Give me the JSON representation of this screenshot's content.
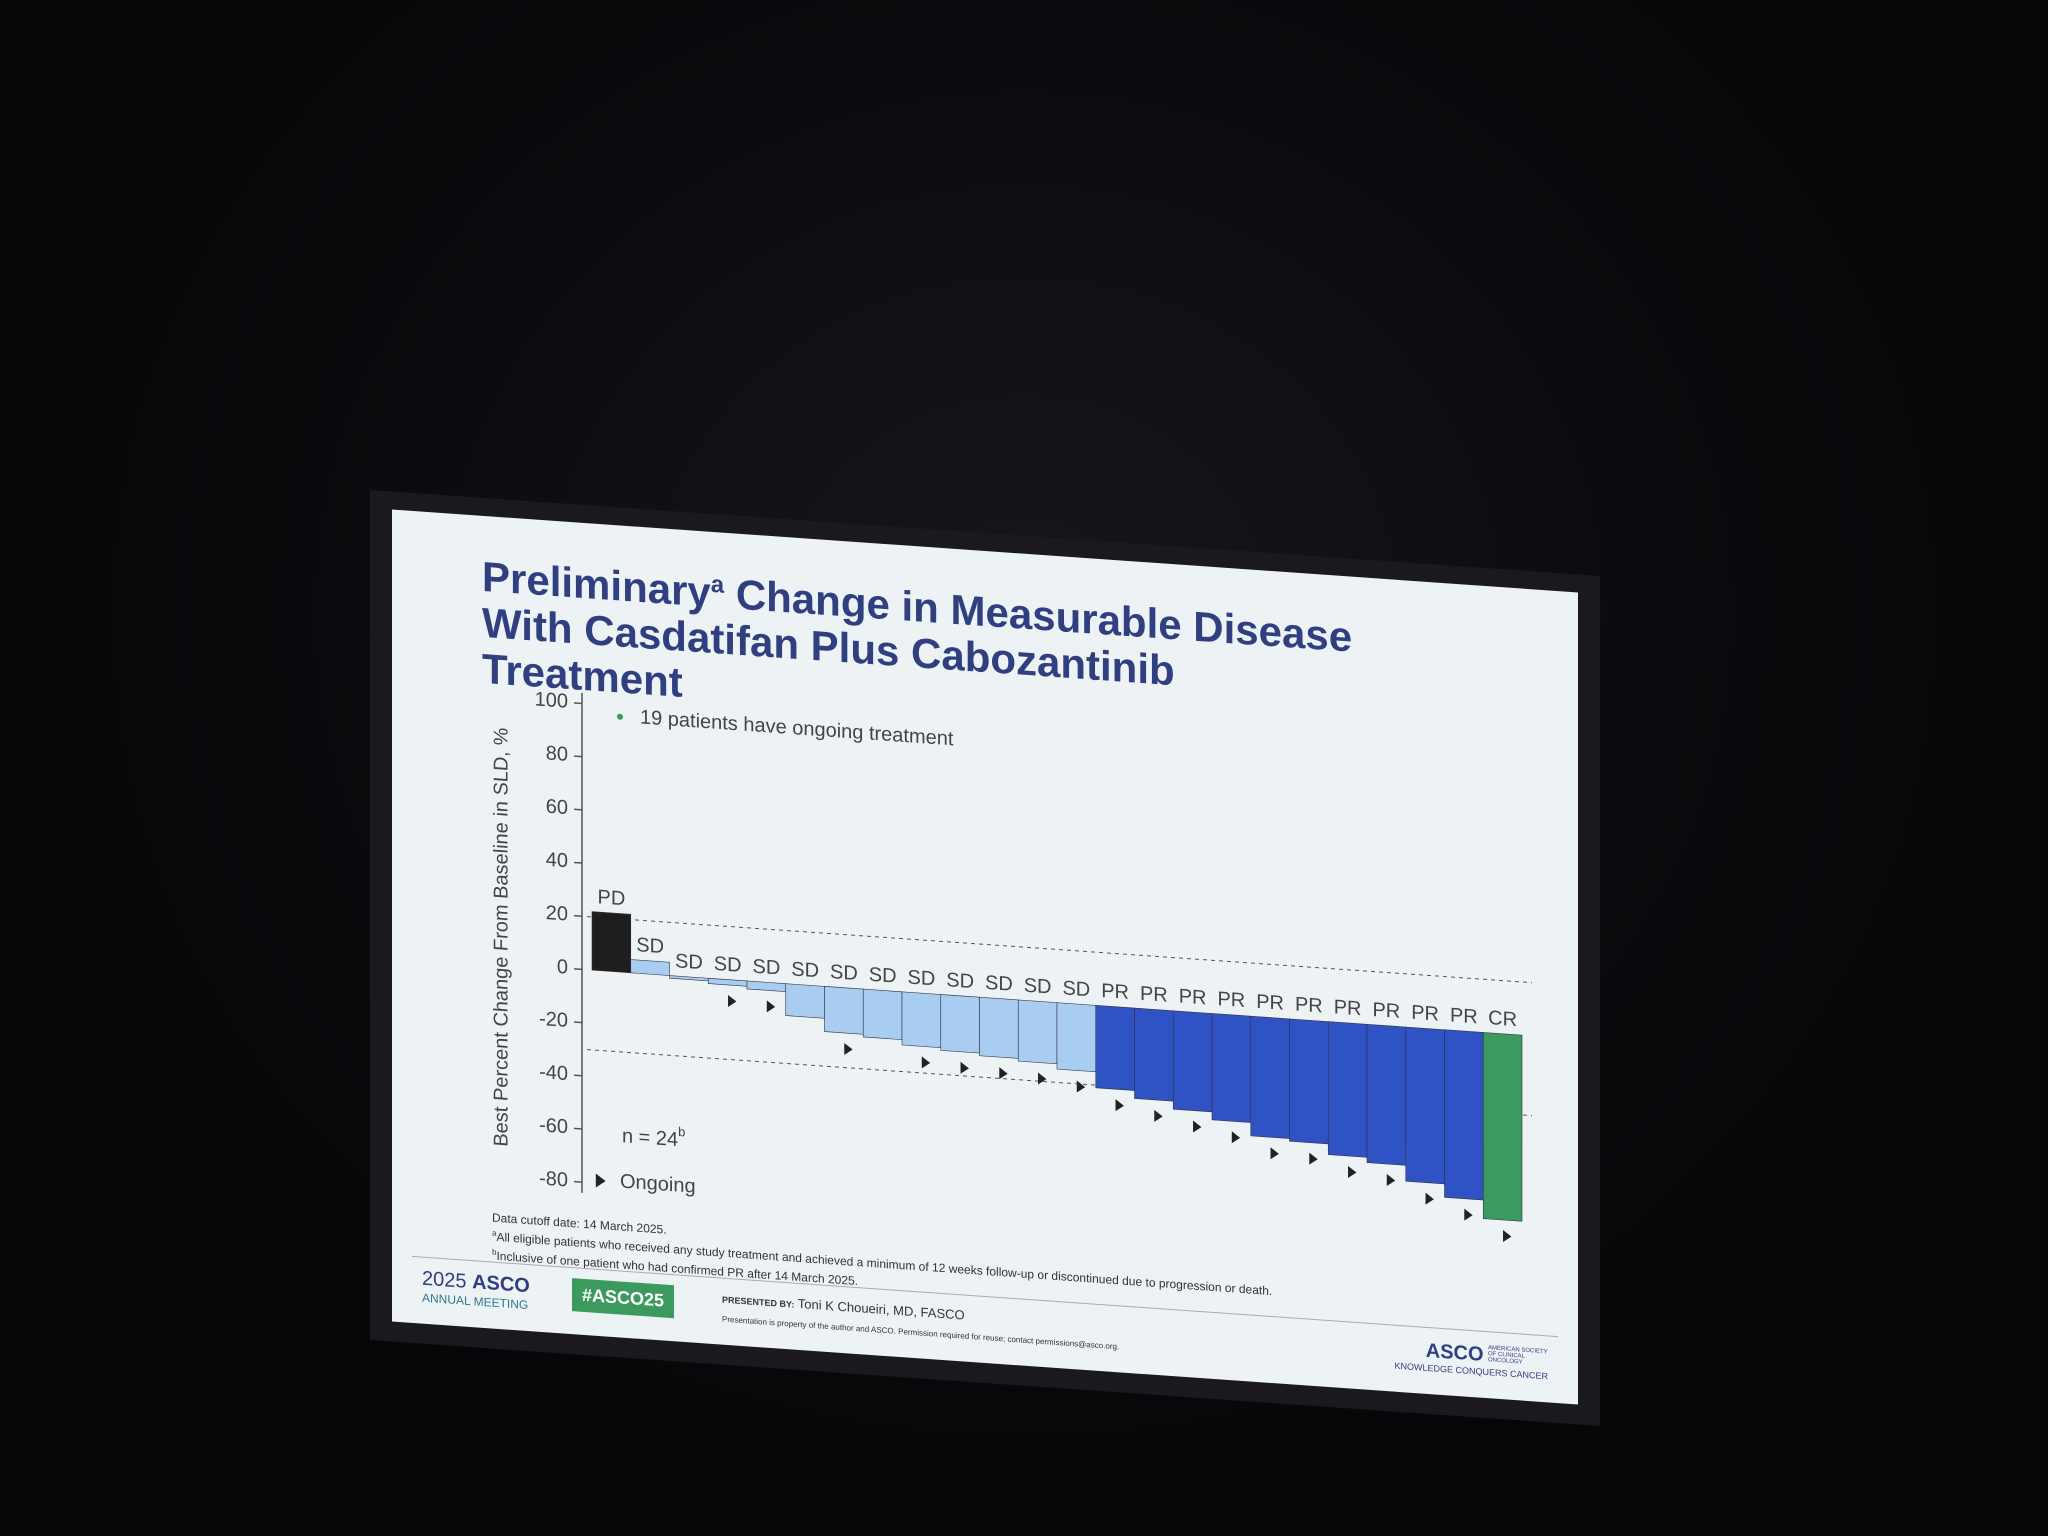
{
  "chart_data": {
    "type": "bar",
    "title_parts": [
      "Preliminary",
      "a",
      " Change in Measurable Disease With Casdatifan Plus Cabozantinib Treatment"
    ],
    "annotation": "19 patients have ongoing treatment",
    "y_label": "Best Percent Change From Baseline in SLD, %",
    "categories": [
      "PD",
      "SD",
      "SD",
      "SD",
      "SD",
      "SD",
      "SD",
      "SD",
      "SD",
      "SD",
      "SD",
      "SD",
      "SD",
      "PR",
      "PR",
      "PR",
      "PR",
      "PR",
      "PR",
      "PR",
      "PR",
      "PR",
      "PR",
      "CR"
    ],
    "values": [
      22,
      5,
      -1,
      -2,
      -3,
      -12,
      -17,
      -18,
      -20,
      -21,
      -22,
      -23,
      -25,
      -31,
      -34,
      -37,
      -40,
      -45,
      -46,
      -50,
      -52,
      -58,
      -63,
      -70
    ],
    "ongoing": [
      false,
      false,
      false,
      true,
      true,
      false,
      true,
      false,
      true,
      true,
      true,
      true,
      true,
      true,
      true,
      true,
      true,
      true,
      true,
      true,
      true,
      true,
      true,
      true
    ],
    "colors": {
      "PD": "#1e1e1e",
      "SD": "#a8cdf0",
      "PR": "#2f53c4",
      "CR": "#3c9a5f"
    },
    "ylim": [
      -84,
      104
    ],
    "yticks": [
      -80,
      -60,
      -40,
      -20,
      0,
      20,
      40,
      60,
      80,
      100
    ],
    "reference_lines": [
      20,
      -30
    ],
    "n_label": [
      "n = 24",
      "b"
    ],
    "legend_label": "Ongoing"
  },
  "footnotes": [
    [
      "",
      "Data cutoff date: 14 March 2025."
    ],
    [
      "a",
      "All eligible patients who received any study treatment and achieved a minimum of 12 weeks follow-up or discontinued due to progression or death."
    ],
    [
      "b",
      "Inclusive of one patient who had confirmed PR after 14 March 2025."
    ]
  ],
  "footer": {
    "meeting_year": "2025",
    "meeting_org": "ASCO",
    "meeting_name": "ANNUAL MEETING",
    "hashtag": "#ASCO25",
    "presented_by": "PRESENTED BY:",
    "presenter": "Toni K Choueiri, MD, FASCO",
    "notice": "Presentation is property of the author and ASCO. Permission required for reuse; contact permissions@asco.org.",
    "logo": "ASCO",
    "society": "AMERICAN SOCIETY OF CLINICAL ONCOLOGY",
    "tagline": "KNOWLEDGE CONQUERS CANCER"
  }
}
